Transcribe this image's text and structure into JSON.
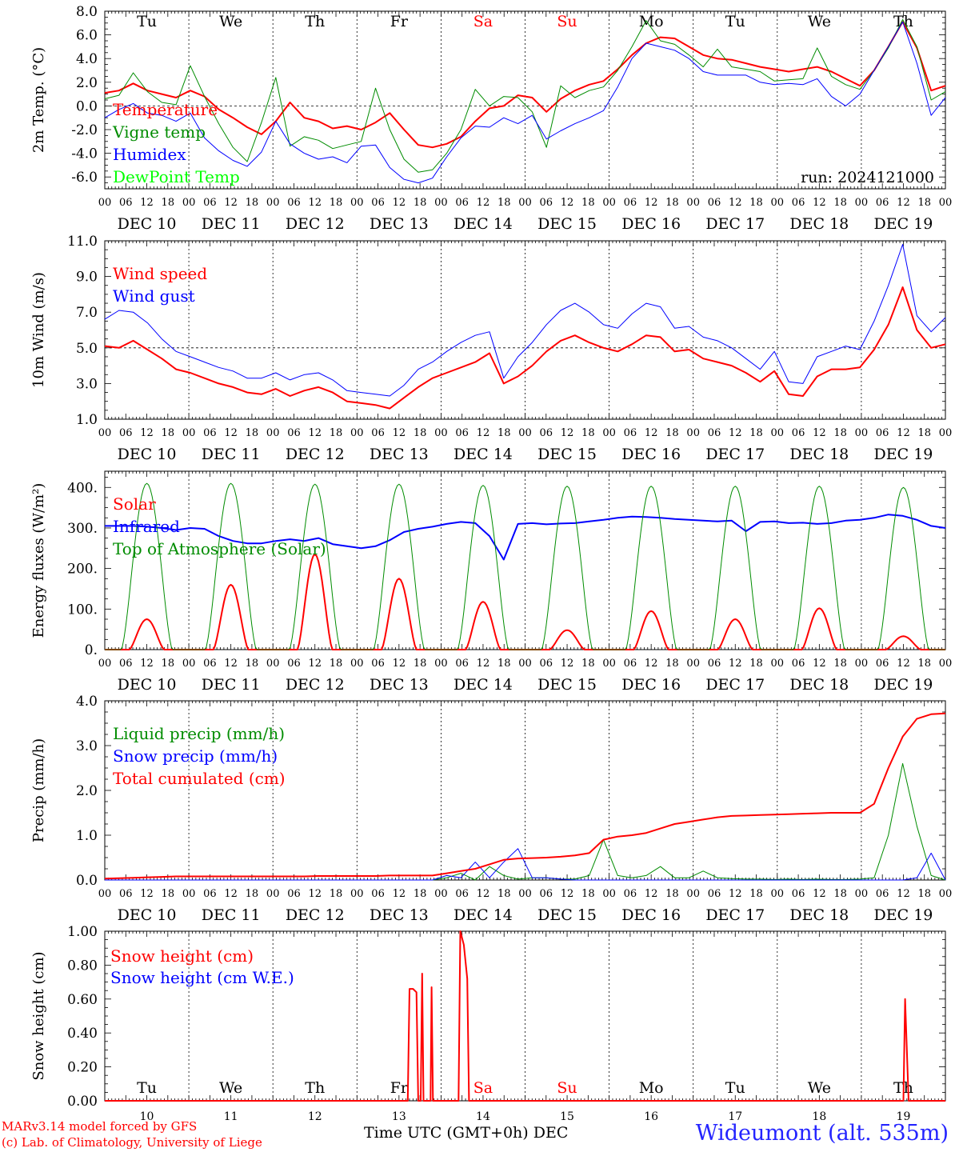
{
  "colors": {
    "red": "#ff0000",
    "green": "#008c00",
    "blue": "#0000ff",
    "lime": "#00ff00",
    "weekend": "#ff0000",
    "station": "#2424ff"
  },
  "run_label": "run: 2024121000",
  "footer": {
    "model": "MARv3.14 model forced by GFS",
    "credit": "(c) Lab. of Climatology, University of Liege",
    "xaxis_title": "Time UTC (GMT+0h) DEC",
    "station": "Wideumont (alt. 535m)"
  },
  "days": [
    "Tu",
    "We",
    "Th",
    "Fr",
    "Sa",
    "Su",
    "Mo",
    "Tu",
    "We",
    "Th"
  ],
  "weekend_days": [
    4,
    5
  ],
  "dates": [
    "DEC 10",
    "DEC 11",
    "DEC 12",
    "DEC 13",
    "DEC 14",
    "DEC 15",
    "DEC 16",
    "DEC 17",
    "DEC 18",
    "DEC 19"
  ],
  "day_numbers": [
    "10",
    "11",
    "12",
    "13",
    "14",
    "15",
    "16",
    "17",
    "18",
    "19"
  ],
  "hour_ticks": [
    "00",
    "06",
    "12",
    "18"
  ],
  "chart_data": [
    {
      "type": "line",
      "ylabel": "2m Temp. (°C)",
      "ylim": [
        -7,
        8
      ],
      "yticks": [
        "-6.0",
        "-4.0",
        "-2.0",
        "0.0",
        "2.0",
        "4.0",
        "6.0",
        "8.0"
      ],
      "ytick_values": [
        -6,
        -4,
        -2,
        0,
        2,
        4,
        6,
        8
      ],
      "ref_line": 0,
      "x_hours_step": 6,
      "series": [
        {
          "name": "Temperature",
          "color": "red",
          "width": 2,
          "values": [
            1.1,
            1.3,
            1.9,
            1.3,
            1.0,
            0.7,
            1.3,
            0.8,
            -0.3,
            -1.0,
            -1.8,
            -2.4,
            -1.3,
            0.3,
            -1.0,
            -1.3,
            -1.9,
            -1.7,
            -2.0,
            -1.4,
            -0.6,
            -2.0,
            -3.3,
            -3.5,
            -3.2,
            -2.6,
            -1.3,
            -0.2,
            0.0,
            0.9,
            0.7,
            -0.5,
            0.6,
            1.3,
            1.8,
            2.1,
            3.1,
            4.3,
            5.3,
            5.8,
            5.7,
            5.0,
            4.3,
            4.0,
            3.9,
            3.6,
            3.3,
            3.1,
            2.9,
            3.1,
            3.3,
            2.9,
            2.3,
            1.7,
            3.0,
            5.0,
            7.1,
            4.9,
            1.3,
            1.7
          ]
        },
        {
          "name": "Vigne temp",
          "color": "green",
          "width": 1,
          "values": [
            0.6,
            0.9,
            2.8,
            1.2,
            0.3,
            0.1,
            3.4,
            0.8,
            -1.5,
            -3.5,
            -4.7,
            -1.4,
            2.4,
            -3.4,
            -2.6,
            -2.9,
            -3.6,
            -3.3,
            -3.0,
            1.5,
            -2.0,
            -4.5,
            -5.6,
            -5.4,
            -4.0,
            -2.0,
            1.4,
            0.0,
            0.8,
            0.7,
            -0.5,
            -3.5,
            1.7,
            0.7,
            1.3,
            1.6,
            3.0,
            5.0,
            7.2,
            5.5,
            5.2,
            4.3,
            3.3,
            4.8,
            3.3,
            3.1,
            2.9,
            2.1,
            2.2,
            2.3,
            4.9,
            2.5,
            1.8,
            1.4,
            3.0,
            4.9,
            7.3,
            5.0,
            0.5,
            1.2
          ]
        },
        {
          "name": "Humidex",
          "color": "blue",
          "width": 1,
          "values": [
            -1.0,
            -0.3,
            0.2,
            -0.6,
            -0.8,
            -1.3,
            -0.6,
            -2.7,
            -3.8,
            -4.6,
            -5.1,
            -3.9,
            -1.3,
            -3.2,
            -4.0,
            -4.5,
            -4.3,
            -4.8,
            -3.4,
            -3.3,
            -5.2,
            -6.2,
            -6.5,
            -6.1,
            -4.3,
            -2.7,
            -1.7,
            -1.8,
            -1.0,
            -1.5,
            -0.8,
            -2.8,
            -2.1,
            -1.5,
            -1.0,
            -0.4,
            1.6,
            4.0,
            5.3,
            5.0,
            4.7,
            4.0,
            2.9,
            2.6,
            2.6,
            2.6,
            2.0,
            1.8,
            1.9,
            1.8,
            2.3,
            0.8,
            0.0,
            1.0,
            3.0,
            5.0,
            7.1,
            3.6,
            -0.8,
            0.7
          ]
        },
        {
          "name": "DewPoint Temp",
          "color": "lime",
          "width": 1,
          "values": []
        }
      ]
    },
    {
      "type": "line",
      "ylabel": "10m Wind (m/s)",
      "ylim": [
        1,
        11
      ],
      "yticks": [
        "1.0",
        "3.0",
        "5.0",
        "7.0",
        "9.0",
        "11.0"
      ],
      "ytick_values": [
        1,
        3,
        5,
        7,
        9,
        11
      ],
      "ref_line": 5,
      "x_hours_step": 6,
      "series": [
        {
          "name": "Wind speed",
          "color": "red",
          "width": 2,
          "values": [
            5.1,
            5.0,
            5.4,
            4.9,
            4.4,
            3.8,
            3.6,
            3.3,
            3.0,
            2.8,
            2.5,
            2.4,
            2.7,
            2.3,
            2.6,
            2.8,
            2.5,
            2.0,
            1.9,
            1.8,
            1.6,
            2.2,
            2.8,
            3.3,
            3.6,
            3.9,
            4.2,
            4.7,
            3.0,
            3.4,
            4.0,
            4.8,
            5.4,
            5.7,
            5.3,
            5.0,
            4.8,
            5.2,
            5.7,
            5.6,
            4.8,
            4.9,
            4.4,
            4.2,
            4.0,
            3.6,
            3.1,
            3.7,
            2.4,
            2.3,
            3.4,
            3.8,
            3.8,
            3.9,
            4.9,
            6.3,
            8.4,
            6.0,
            5.0,
            5.2
          ]
        },
        {
          "name": "Wind gust",
          "color": "blue",
          "width": 1,
          "values": [
            6.6,
            7.1,
            7.0,
            6.4,
            5.5,
            4.8,
            4.5,
            4.2,
            3.9,
            3.7,
            3.3,
            3.3,
            3.6,
            3.2,
            3.5,
            3.6,
            3.2,
            2.6,
            2.5,
            2.4,
            2.3,
            2.9,
            3.8,
            4.2,
            4.8,
            5.3,
            5.7,
            5.9,
            3.3,
            4.5,
            5.3,
            6.3,
            7.1,
            7.5,
            7.0,
            6.3,
            6.1,
            6.9,
            7.5,
            7.3,
            6.1,
            6.2,
            5.6,
            5.4,
            5.0,
            4.4,
            3.8,
            4.8,
            3.1,
            3.0,
            4.5,
            4.8,
            5.1,
            4.9,
            6.5,
            8.5,
            10.8,
            6.8,
            5.9,
            6.7
          ]
        }
      ]
    },
    {
      "type": "line",
      "ylabel": "Energy fluxes (W/m²)",
      "ylim": [
        0,
        440
      ],
      "yticks": [
        "0.",
        "100.",
        "200.",
        "300.",
        "400."
      ],
      "ytick_values": [
        0,
        100,
        200,
        300,
        400
      ],
      "x_hours_step": 1,
      "series": [
        {
          "name": "Solar",
          "color": "red",
          "width": 2,
          "daily_peaks": [
            75,
            160,
            235,
            175,
            118,
            48,
            95,
            75,
            102,
            33
          ]
        },
        {
          "name": "Infrared",
          "color": "blue",
          "width": 2,
          "values": [
            305,
            305,
            305,
            303,
            300,
            295,
            300,
            298,
            280,
            268,
            262,
            262,
            268,
            272,
            268,
            275,
            260,
            255,
            250,
            255,
            270,
            290,
            298,
            303,
            310,
            315,
            312,
            280,
            222,
            310,
            312,
            309,
            311,
            312,
            316,
            320,
            325,
            328,
            327,
            325,
            322,
            320,
            318,
            316,
            318,
            292,
            315,
            316,
            312,
            313,
            310,
            312,
            318,
            320,
            325,
            333,
            330,
            320,
            305,
            300
          ]
        },
        {
          "name": "Top of Atmosphere (Solar)",
          "color": "green",
          "width": 1,
          "daily_peaks": [
            410,
            410,
            408,
            408,
            405,
            403,
            403,
            403,
            403,
            400
          ]
        }
      ]
    },
    {
      "type": "line",
      "ylabel": "Precip (mm/h)",
      "ylim": [
        0,
        4
      ],
      "yticks": [
        "0.0",
        "1.0",
        "2.0",
        "3.0",
        "4.0"
      ],
      "ytick_values": [
        0,
        1,
        2,
        3,
        4
      ],
      "x_hours_step": 6,
      "series": [
        {
          "name": "Liquid precip (mm/h)",
          "color": "green",
          "width": 1,
          "values": [
            0,
            0,
            0,
            0,
            0,
            0,
            0,
            0,
            0,
            0,
            0,
            0,
            0,
            0,
            0,
            0,
            0,
            0,
            0,
            0,
            0,
            0,
            0,
            0,
            0.05,
            0.15,
            0.0,
            0.3,
            0.1,
            0.02,
            0.05,
            0.05,
            0.02,
            0.02,
            0.1,
            0.9,
            0.1,
            0.05,
            0.1,
            0.3,
            0.05,
            0.05,
            0.2,
            0.05,
            0.03,
            0.02,
            0.02,
            0.01,
            0.02,
            0.01,
            0.02,
            0.01,
            0.01,
            0.02,
            0.05,
            1.0,
            2.6,
            1.2,
            0.1,
            0.0
          ]
        },
        {
          "name": "Snow precip (mm/h)",
          "color": "blue",
          "width": 1,
          "values": [
            0,
            0,
            0,
            0,
            0,
            0,
            0,
            0,
            0,
            0,
            0,
            0,
            0,
            0,
            0,
            0,
            0,
            0,
            0,
            0,
            0,
            0,
            0,
            0,
            0.1,
            0.05,
            0.4,
            0.05,
            0.4,
            0.7,
            0.05,
            0.05,
            0.02,
            0,
            0,
            0,
            0,
            0,
            0,
            0,
            0,
            0,
            0,
            0,
            0,
            0,
            0,
            0,
            0,
            0,
            0,
            0,
            0,
            0,
            0,
            0,
            0,
            0.05,
            0.6,
            0.0
          ]
        },
        {
          "name": "Total cumulated (cm)",
          "color": "red",
          "width": 2,
          "values": [
            0.03,
            0.04,
            0.05,
            0.06,
            0.07,
            0.08,
            0.08,
            0.08,
            0.08,
            0.08,
            0.08,
            0.08,
            0.08,
            0.08,
            0.08,
            0.09,
            0.09,
            0.09,
            0.09,
            0.09,
            0.1,
            0.1,
            0.1,
            0.1,
            0.15,
            0.2,
            0.25,
            0.35,
            0.45,
            0.48,
            0.49,
            0.5,
            0.52,
            0.55,
            0.6,
            0.9,
            0.97,
            1.0,
            1.05,
            1.15,
            1.25,
            1.3,
            1.35,
            1.4,
            1.43,
            1.44,
            1.45,
            1.46,
            1.47,
            1.48,
            1.49,
            1.5,
            1.5,
            1.5,
            1.7,
            2.5,
            3.2,
            3.6,
            3.7,
            3.72
          ]
        }
      ]
    },
    {
      "type": "line",
      "ylabel": "Snow height (cm)",
      "ylim": [
        0,
        1
      ],
      "yticks": [
        "0.00",
        "0.20",
        "0.40",
        "0.60",
        "0.80",
        "1.00"
      ],
      "ytick_values": [
        0,
        0.2,
        0.4,
        0.6,
        0.8,
        1.0
      ],
      "series": [
        {
          "name": "Snow height (cm)",
          "color": "red",
          "width": 2,
          "points": [
            [
              0,
              0
            ],
            [
              86.5,
              0
            ],
            [
              87,
              0.66
            ],
            [
              88,
              0.66
            ],
            [
              89,
              0.64
            ],
            [
              89.5,
              0
            ],
            [
              90.2,
              0
            ],
            [
              90.6,
              0.75
            ],
            [
              91,
              0
            ],
            [
              93,
              0
            ],
            [
              93.3,
              0.67
            ],
            [
              93.7,
              0
            ],
            [
              101,
              0
            ],
            [
              101.5,
              1.0
            ],
            [
              102.5,
              0.92
            ],
            [
              103.5,
              0.72
            ],
            [
              104,
              0
            ],
            [
              228,
              0
            ],
            [
              228.5,
              0.6
            ],
            [
              229.5,
              0
            ],
            [
              240,
              0
            ]
          ]
        },
        {
          "name": "Snow height (cm W.E.)",
          "color": "blue",
          "width": 1,
          "points": []
        }
      ]
    }
  ]
}
